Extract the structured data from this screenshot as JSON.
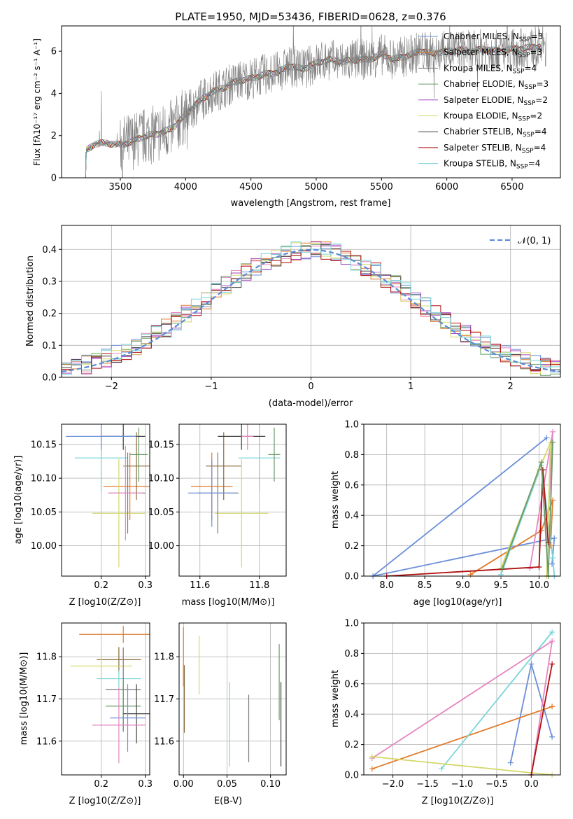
{
  "colors": {
    "grid": "#b0b0b0",
    "spectrum": "#808080",
    "normal_curve": "#5b8bd6",
    "series": [
      "#6a8fd8",
      "#e07a2a",
      "#7a7a7a",
      "#e585c0",
      "#8a6a3a",
      "#6a9a6a",
      "#a044c0",
      "#d4d86a",
      "#404040",
      "#b01010",
      "#7ad4d8"
    ]
  },
  "panel1": {
    "title": "PLATE=1950, MJD=53436, FIBERID=0628, z=0.376",
    "xlabel": "wavelength [Angstrom, rest frame]",
    "ylabel": "Flux [fλ10⁻¹⁷ erg cm⁻² s⁻¹ A⁻¹]",
    "xticks": [
      "3500",
      "4000",
      "4500",
      "5000",
      "5500",
      "6000",
      "6500"
    ],
    "yticks": [
      "0",
      "2",
      "4",
      "6"
    ],
    "legend": [
      "Chabrier MILES, N_SSP=3",
      "Salpeter MILES, N_SSP=3",
      "Kroupa MILES, N_SSP=4",
      "Chabrier ELODIE, N_SSP=3",
      "Salpeter ELODIE, N_SSP=2",
      "Kroupa ELODIE, N_SSP=2",
      "Chabrier STELIB, N_SSP=4",
      "Salpeter STELIB, N_SSP=4",
      "Kroupa STELIB, N_SSP=4"
    ]
  },
  "panel2": {
    "xlabel": "(data-model)/error",
    "ylabel": "Normed distribution",
    "legend": "𝒩(0, 1)",
    "xticks": [
      "−2",
      "−1",
      "0",
      "1",
      "2"
    ],
    "yticks": [
      "0.0",
      "0.1",
      "0.2",
      "0.3",
      "0.4"
    ]
  },
  "panel3": {
    "xlabel": "Z [log10(Z/Z⊙)]",
    "ylabel": "age  [log10(age/yr)]",
    "xticks": [
      "0.2",
      "0.3"
    ],
    "yticks": [
      "10.00",
      "10.05",
      "10.10",
      "10.15"
    ]
  },
  "panel4": {
    "xlabel": "mass [log10(M/M⊙)]",
    "xticks": [
      "11.6",
      "11.8"
    ],
    "yticks": [
      "10.00",
      "10.05",
      "10.10",
      "10.15"
    ]
  },
  "panel5": {
    "xlabel": "age  [log10(age/yr)]",
    "ylabel": "mass weight",
    "xticks": [
      "8.0",
      "8.5",
      "9.0",
      "9.5",
      "10.0"
    ],
    "yticks": [
      "0.0",
      "0.2",
      "0.4",
      "0.6",
      "0.8",
      "1.0"
    ]
  },
  "panel6": {
    "xlabel": "Z [log10(Z/Z⊙)]",
    "ylabel": "mass [log10(M/M⊙)]",
    "xticks": [
      "0.2",
      "0.3"
    ],
    "yticks": [
      "11.6",
      "11.7",
      "11.8"
    ]
  },
  "panel7": {
    "xlabel": "E(B-V)",
    "xticks": [
      "0.00",
      "0.05",
      "0.10"
    ],
    "yticks": [
      "11.6",
      "11.7",
      "11.8"
    ]
  },
  "panel8": {
    "xlabel": "Z [log10(Z/Z⊙)]",
    "ylabel": "mass weight",
    "xticks": [
      "−2.0",
      "−1.5",
      "−1.0",
      "−0.5",
      "0.0"
    ],
    "yticks": [
      "0.0",
      "0.2",
      "0.4",
      "0.6",
      "0.8",
      "1.0"
    ]
  },
  "chart_data": [
    {
      "type": "line",
      "title": "PLATE=1950, MJD=53436, FIBERID=0628, z=0.376",
      "xlabel": "wavelength [Angstrom, rest frame]",
      "ylabel": "Flux [fλ10⁻¹⁷ erg cm⁻² s⁻¹ A⁻¹]",
      "xlim": [
        3050,
        6870
      ],
      "ylim": [
        0,
        7.2
      ],
      "grid": false,
      "legend_position": "upper right",
      "spectrum_envelope": {
        "x": [
          3200,
          3240,
          3300,
          3400,
          3500,
          3600,
          3700,
          3800,
          3900,
          4000,
          4100,
          4200,
          4300,
          4400,
          4500,
          4600,
          4700,
          4800,
          4900,
          5000,
          5100,
          5200,
          5300,
          5400,
          5500,
          5600,
          5700,
          5800,
          5900,
          6000,
          6100,
          6200,
          6300,
          6400,
          6500,
          6600,
          6700
        ],
        "y": [
          0.05,
          1.3,
          1.6,
          1.65,
          1.55,
          1.75,
          2.0,
          2.1,
          2.35,
          3.0,
          3.6,
          4.05,
          4.3,
          4.6,
          4.7,
          4.9,
          5.0,
          5.3,
          5.15,
          5.45,
          5.6,
          5.5,
          5.6,
          5.6,
          5.85,
          5.6,
          5.8,
          6.0,
          5.9,
          6.0,
          6.05,
          6.0,
          6.1,
          6.0,
          6.1,
          6.15,
          6.2
        ]
      },
      "series": [
        {
          "name": "Chabrier MILES, N_SSP=3"
        },
        {
          "name": "Salpeter MILES, N_SSP=3"
        },
        {
          "name": "Kroupa MILES, N_SSP=4"
        },
        {
          "name": "Chabrier ELODIE, N_SSP=3"
        },
        {
          "name": "Salpeter ELODIE, N_SSP=2"
        },
        {
          "name": "Kroupa ELODIE, N_SSP=2"
        },
        {
          "name": "Chabrier STELIB, N_SSP=4"
        },
        {
          "name": "Salpeter STELIB, N_SSP=4"
        },
        {
          "name": "Kroupa STELIB, N_SSP=4"
        }
      ]
    },
    {
      "type": "line",
      "xlabel": "(data-model)/error",
      "ylabel": "Normed distribution",
      "xlim": [
        -2.5,
        2.5
      ],
      "ylim": [
        0,
        0.475
      ],
      "grid": true,
      "legend_position": "upper right",
      "series": [
        {
          "name": "𝒩(0, 1)",
          "mean": 0,
          "sigma": 1
        }
      ],
      "histogram_bins": 50
    },
    {
      "type": "scatter",
      "xlabel": "Z [log10(Z/Z⊙)]",
      "ylabel": "age  [log10(age/yr)]",
      "xlim": [
        0.11,
        0.31
      ],
      "ylim": [
        9.955,
        10.18
      ],
      "grid": true,
      "points": [
        {
          "x": 0.265,
          "y": 10.088,
          "xerr": 0.06,
          "yerr": 0.05
        },
        {
          "x": 0.28,
          "y": 10.118,
          "xerr": 0.03,
          "yerr": 0.05
        },
        {
          "x": 0.24,
          "y": 10.048,
          "xerr": 0.06,
          "yerr": 0.08
        },
        {
          "x": 0.2,
          "y": 10.13,
          "xerr": 0.06,
          "yerr": 0.05
        },
        {
          "x": 0.26,
          "y": 10.078,
          "xerr": 0.04,
          "yerr": 0.06
        },
        {
          "x": 0.285,
          "y": 10.135,
          "xerr": 0.02,
          "yerr": 0.04
        },
        {
          "x": 0.25,
          "y": 10.162,
          "xerr": 0.05,
          "yerr": 0.02
        },
        {
          "x": 0.2,
          "y": 10.162,
          "xerr": 0.08,
          "yerr": 0.02
        },
        {
          "x": 0.255,
          "y": 10.078,
          "xerr": 0.04,
          "yerr": 0.07
        }
      ]
    },
    {
      "type": "scatter",
      "xlabel": "mass [log10(M/M⊙)]",
      "xlim": [
        11.53,
        11.89
      ],
      "ylim": [
        9.955,
        10.18
      ],
      "grid": true,
      "points": [
        {
          "x": 11.64,
          "y": 10.088,
          "xerr": 0.07,
          "yerr": 0.05
        },
        {
          "x": 11.68,
          "y": 10.118,
          "xerr": 0.06,
          "yerr": 0.05
        },
        {
          "x": 11.74,
          "y": 10.048,
          "xerr": 0.09,
          "yerr": 0.08
        },
        {
          "x": 11.8,
          "y": 10.13,
          "xerr": 0.07,
          "yerr": 0.05
        },
        {
          "x": 11.66,
          "y": 10.078,
          "xerr": 0.07,
          "yerr": 0.06
        },
        {
          "x": 11.85,
          "y": 10.135,
          "xerr": 0.02,
          "yerr": 0.04
        },
        {
          "x": 11.74,
          "y": 10.162,
          "xerr": 0.08,
          "yerr": 0.02
        },
        {
          "x": 11.64,
          "y": 10.078,
          "xerr": 0.08,
          "yerr": 0.05
        },
        {
          "x": 11.76,
          "y": 10.162,
          "xerr": 0.02,
          "yerr": 0.02
        }
      ]
    },
    {
      "type": "line",
      "xlabel": "age  [log10(age/yr)]",
      "ylabel": "mass weight",
      "xlim": [
        7.7,
        10.28
      ],
      "ylim": [
        0,
        1.0
      ],
      "grid": true,
      "series": [
        {
          "points": [
            [
              10.1,
              0.91
            ],
            [
              7.82,
              0.0
            ],
            [
              10.2,
              0.25
            ],
            [
              10.17,
              0.08
            ]
          ]
        },
        {
          "points": [
            [
              9.1,
              0.01
            ],
            [
              10.03,
              0.3
            ],
            [
              10.18,
              0.5
            ],
            [
              10.15,
              0.2
            ]
          ]
        },
        {
          "points": [
            [
              9.5,
              0.01
            ],
            [
              10.03,
              0.73
            ],
            [
              10.18,
              0.12
            ],
            [
              10.2,
              0.0
            ]
          ]
        },
        {
          "points": [
            [
              9.88,
              0.05
            ],
            [
              10.18,
              0.95
            ],
            [
              10.1,
              0.2
            ]
          ]
        },
        {
          "points": [
            [
              9.5,
              0.05
            ],
            [
              10.0,
              0.7
            ],
            [
              10.15,
              0.88
            ],
            [
              10.1,
              0.0
            ]
          ]
        },
        {
          "points": [
            [
              8.0,
              0.0
            ],
            [
              10.0,
              0.06
            ],
            [
              10.05,
              0.7
            ],
            [
              10.12,
              0.22
            ]
          ]
        },
        {
          "points": [
            [
              9.52,
              0.05
            ],
            [
              10.03,
              0.75
            ],
            [
              10.12,
              0.0
            ],
            [
              10.18,
              0.88
            ]
          ]
        }
      ]
    },
    {
      "type": "scatter",
      "xlabel": "Z [log10(Z/Z⊙)]",
      "ylabel": "mass [log10(M/M⊙)]",
      "xlim": [
        0.11,
        0.31
      ],
      "ylim": [
        11.52,
        11.88
      ],
      "grid": true,
      "points": [
        {
          "x": 0.25,
          "y": 11.853,
          "xerr": 0.1,
          "yerr": 0.02
        },
        {
          "x": 0.24,
          "y": 11.793,
          "xerr": 0.05,
          "yerr": 0.03
        },
        {
          "x": 0.2,
          "y": 11.778,
          "xerr": 0.07,
          "yerr": 0.03
        },
        {
          "x": 0.24,
          "y": 11.748,
          "xerr": 0.05,
          "yerr": 0.02
        },
        {
          "x": 0.25,
          "y": 11.722,
          "xerr": 0.04,
          "yerr": 0.1
        },
        {
          "x": 0.25,
          "y": 11.683,
          "xerr": 0.04,
          "yerr": 0.06
        },
        {
          "x": 0.28,
          "y": 11.665,
          "xerr": 0.03,
          "yerr": 0.07
        },
        {
          "x": 0.26,
          "y": 11.655,
          "xerr": 0.04,
          "yerr": 0.08
        },
        {
          "x": 0.24,
          "y": 11.638,
          "xerr": 0.06,
          "yerr": 0.09
        }
      ]
    },
    {
      "type": "scatter",
      "xlabel": "E(B-V)",
      "xlim": [
        -0.005,
        0.118
      ],
      "ylim": [
        11.52,
        11.88
      ],
      "grid": true,
      "points": [
        {
          "x": 0.0,
          "y": 11.8,
          "yerr": 0.07
        },
        {
          "x": 0.001,
          "y": 11.7,
          "yerr": 0.08
        },
        {
          "x": 0.018,
          "y": 11.78,
          "yerr": 0.07
        },
        {
          "x": 0.053,
          "y": 11.64,
          "yerr": 0.1
        },
        {
          "x": 0.075,
          "y": 11.63,
          "yerr": 0.08
        },
        {
          "x": 0.11,
          "y": 11.74,
          "yerr": 0.09
        },
        {
          "x": 0.112,
          "y": 11.64,
          "yerr": 0.1
        }
      ]
    },
    {
      "type": "line",
      "xlabel": "Z [log10(Z/Z⊙)]",
      "ylabel": "mass weight",
      "xlim": [
        -2.42,
        0.42
      ],
      "ylim": [
        0,
        1.0
      ],
      "grid": true,
      "series": [
        {
          "points": [
            [
              -0.3,
              0.08
            ],
            [
              0.0,
              0.73
            ],
            [
              0.3,
              0.25
            ]
          ]
        },
        {
          "points": [
            [
              -2.3,
              0.04
            ],
            [
              0.3,
              0.45
            ]
          ]
        },
        {
          "points": [
            [
              -1.3,
              0.04
            ],
            [
              0.3,
              0.94
            ]
          ]
        },
        {
          "points": [
            [
              -2.3,
              0.11
            ],
            [
              0.3,
              0.88
            ],
            [
              0.0,
              0.0
            ]
          ]
        },
        {
          "points": [
            [
              -2.3,
              0.12
            ],
            [
              0.3,
              0.0
            ]
          ]
        },
        {
          "points": [
            [
              0.0,
              0.0
            ],
            [
              0.3,
              0.73
            ]
          ]
        }
      ]
    }
  ]
}
